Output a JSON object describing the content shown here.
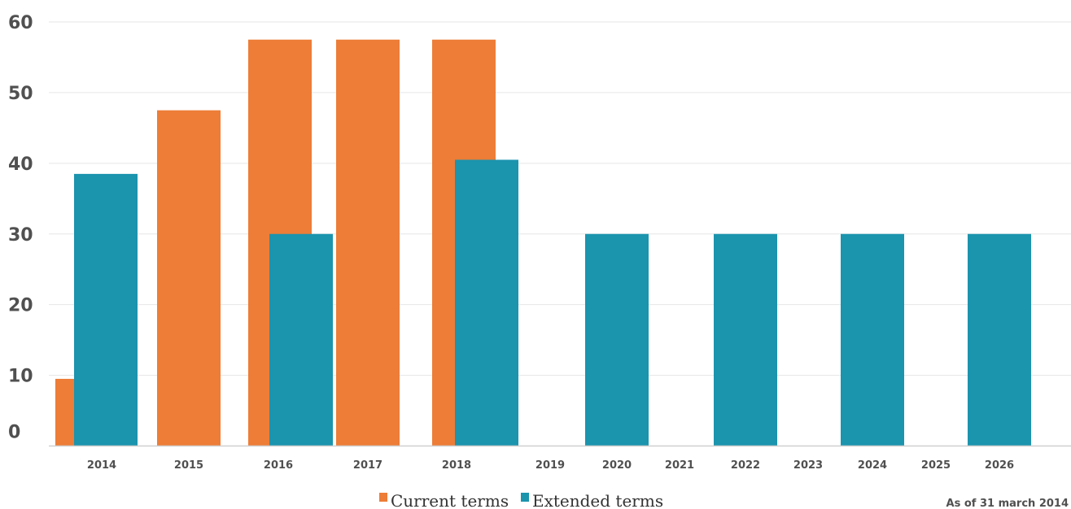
{
  "chart_data": {
    "type": "bar",
    "categories": [
      "2014",
      "2015",
      "2016",
      "2017",
      "2018",
      "2019",
      "2020",
      "2021",
      "2022",
      "2023",
      "2024",
      "2025",
      "2026"
    ],
    "series": [
      {
        "name": "Current terms",
        "color": "#ed7d37",
        "values": [
          9.5,
          47.5,
          57.5,
          57.5,
          57.5,
          null,
          null,
          null,
          null,
          null,
          null,
          null,
          null
        ]
      },
      {
        "name": "Extended terms",
        "color": "#1b94ae",
        "values": [
          38.5,
          null,
          30,
          null,
          40.5,
          null,
          30,
          null,
          30,
          null,
          30,
          null,
          30
        ]
      }
    ],
    "yticks": [
      "0",
      "10",
      "20",
      "30",
      "40",
      "50",
      "60"
    ],
    "ylim": [
      0,
      60
    ],
    "grid": true,
    "legend_position": "bottom-center",
    "note": "As of 31 march 2014"
  }
}
